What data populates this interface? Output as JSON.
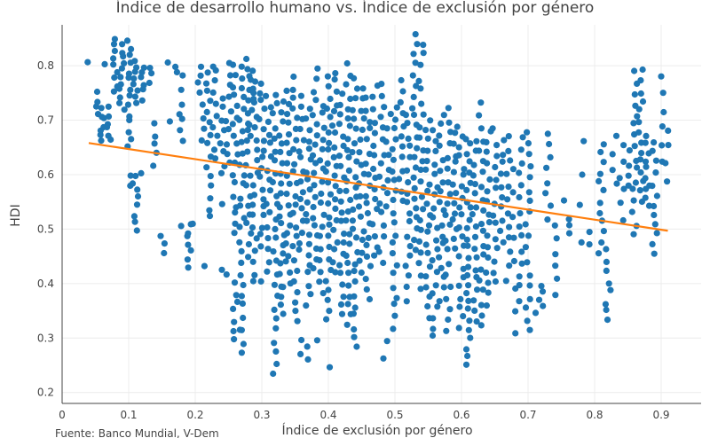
{
  "chart_data": {
    "type": "scatter",
    "title": "Índice de desarrollo humano vs. Índice de exclusión por género",
    "xlabel": "Índice de exclusión por género",
    "ylabel": "HDI",
    "source": "Fuente: Banco Mundial, V-Dem",
    "xlim": [
      0,
      0.96
    ],
    "ylim": [
      0.18,
      0.875
    ],
    "x_ticks": [
      0,
      0.1,
      0.2,
      0.3,
      0.4,
      0.5,
      0.6,
      0.7,
      0.8,
      0.9
    ],
    "y_ticks": [
      0.2,
      0.3,
      0.4,
      0.5,
      0.6,
      0.7,
      0.8
    ],
    "grid": true,
    "colors": {
      "points": "#1f77b4",
      "trend": "#ff7f0e"
    },
    "trendline": {
      "x": [
        0.04,
        0.91
      ],
      "y": [
        0.658,
        0.497
      ]
    },
    "clusters": [
      [
        0.04,
        0.8,
        0.81,
        1
      ],
      [
        0.05,
        0.71,
        0.75,
        4
      ],
      [
        0.06,
        0.66,
        0.72,
        7
      ],
      [
        0.065,
        0.8,
        0.81,
        1
      ],
      [
        0.07,
        0.66,
        0.72,
        6
      ],
      [
        0.08,
        0.75,
        0.85,
        9
      ],
      [
        0.09,
        0.72,
        0.84,
        11
      ],
      [
        0.1,
        0.65,
        0.85,
        14
      ],
      [
        0.1,
        0.58,
        0.6,
        2
      ],
      [
        0.11,
        0.5,
        0.6,
        8
      ],
      [
        0.11,
        0.73,
        0.81,
        8
      ],
      [
        0.12,
        0.6,
        0.61,
        1
      ],
      [
        0.12,
        0.74,
        0.8,
        6
      ],
      [
        0.135,
        0.77,
        0.8,
        3
      ],
      [
        0.14,
        0.62,
        0.69,
        5
      ],
      [
        0.15,
        0.46,
        0.49,
        3
      ],
      [
        0.155,
        0.8,
        0.81,
        1
      ],
      [
        0.16,
        0.7,
        0.7,
        1
      ],
      [
        0.17,
        0.79,
        0.8,
        2
      ],
      [
        0.18,
        0.7,
        0.7,
        1
      ],
      [
        0.18,
        0.66,
        0.78,
        6
      ],
      [
        0.18,
        0.5,
        0.51,
        1
      ],
      [
        0.19,
        0.43,
        0.51,
        7
      ],
      [
        0.2,
        0.5,
        0.51,
        1
      ],
      [
        0.205,
        0.77,
        0.8,
        3
      ],
      [
        0.21,
        0.43,
        0.43,
        1
      ],
      [
        0.21,
        0.66,
        0.75,
        5
      ],
      [
        0.22,
        0.52,
        0.79,
        15
      ],
      [
        0.23,
        0.63,
        0.79,
        9
      ],
      [
        0.23,
        0.8,
        0.8,
        1
      ],
      [
        0.24,
        0.54,
        0.55,
        1
      ],
      [
        0.24,
        0.6,
        0.74,
        8
      ],
      [
        0.24,
        0.42,
        0.43,
        1
      ],
      [
        0.25,
        0.62,
        0.8,
        10
      ],
      [
        0.25,
        0.41,
        0.42,
        1
      ],
      [
        0.26,
        0.49,
        0.8,
        18
      ],
      [
        0.26,
        0.3,
        0.4,
        7
      ],
      [
        0.27,
        0.32,
        0.8,
        25
      ],
      [
        0.27,
        0.27,
        0.31,
        3
      ],
      [
        0.28,
        0.45,
        0.81,
        20
      ],
      [
        0.285,
        0.67,
        0.78,
        6
      ],
      [
        0.29,
        0.4,
        0.79,
        20
      ],
      [
        0.3,
        0.47,
        0.77,
        18
      ],
      [
        0.3,
        0.39,
        0.41,
        1
      ],
      [
        0.31,
        0.42,
        0.74,
        16
      ],
      [
        0.32,
        0.23,
        0.75,
        26
      ],
      [
        0.33,
        0.34,
        0.73,
        22
      ],
      [
        0.33,
        0.38,
        0.4,
        1
      ],
      [
        0.34,
        0.4,
        0.75,
        20
      ],
      [
        0.35,
        0.33,
        0.78,
        24
      ],
      [
        0.36,
        0.46,
        0.74,
        16
      ],
      [
        0.36,
        0.27,
        0.3,
        2
      ],
      [
        0.37,
        0.36,
        0.72,
        20
      ],
      [
        0.37,
        0.26,
        0.28,
        2
      ],
      [
        0.38,
        0.43,
        0.79,
        20
      ],
      [
        0.38,
        0.29,
        0.3,
        1
      ],
      [
        0.39,
        0.38,
        0.73,
        18
      ],
      [
        0.4,
        0.33,
        0.78,
        24
      ],
      [
        0.4,
        0.24,
        0.25,
        1
      ],
      [
        0.41,
        0.42,
        0.79,
        20
      ],
      [
        0.42,
        0.34,
        0.75,
        22
      ],
      [
        0.43,
        0.32,
        0.8,
        26
      ],
      [
        0.44,
        0.28,
        0.78,
        26
      ],
      [
        0.45,
        0.42,
        0.76,
        18
      ],
      [
        0.46,
        0.37,
        0.74,
        20
      ],
      [
        0.47,
        0.45,
        0.76,
        16
      ],
      [
        0.48,
        0.26,
        0.27,
        1
      ],
      [
        0.48,
        0.44,
        0.77,
        16
      ],
      [
        0.49,
        0.29,
        0.3,
        1
      ],
      [
        0.49,
        0.54,
        0.71,
        8
      ],
      [
        0.5,
        0.32,
        0.72,
        22
      ],
      [
        0.51,
        0.55,
        0.77,
        12
      ],
      [
        0.52,
        0.37,
        0.71,
        18
      ],
      [
        0.53,
        0.46,
        0.86,
        22
      ],
      [
        0.54,
        0.39,
        0.84,
        22
      ],
      [
        0.55,
        0.34,
        0.7,
        20
      ],
      [
        0.56,
        0.3,
        0.68,
        20
      ],
      [
        0.57,
        0.37,
        0.71,
        18
      ],
      [
        0.58,
        0.31,
        0.72,
        20
      ],
      [
        0.59,
        0.46,
        0.69,
        14
      ],
      [
        0.6,
        0.32,
        0.67,
        20
      ],
      [
        0.61,
        0.25,
        0.67,
        26
      ],
      [
        0.62,
        0.33,
        0.66,
        18
      ],
      [
        0.63,
        0.32,
        0.73,
        20
      ],
      [
        0.64,
        0.36,
        0.68,
        16
      ],
      [
        0.65,
        0.4,
        0.68,
        14
      ],
      [
        0.66,
        0.48,
        0.66,
        10
      ],
      [
        0.67,
        0.41,
        0.67,
        12
      ],
      [
        0.68,
        0.31,
        0.61,
        8
      ],
      [
        0.69,
        0.37,
        0.67,
        14
      ],
      [
        0.7,
        0.31,
        0.68,
        18
      ],
      [
        0.71,
        0.35,
        0.35,
        1
      ],
      [
        0.72,
        0.36,
        0.4,
        4
      ],
      [
        0.73,
        0.52,
        0.68,
        8
      ],
      [
        0.74,
        0.38,
        0.51,
        6
      ],
      [
        0.75,
        0.55,
        0.55,
        1
      ],
      [
        0.76,
        0.49,
        0.52,
        3
      ],
      [
        0.78,
        0.48,
        0.66,
        4
      ],
      [
        0.79,
        0.47,
        0.49,
        2
      ],
      [
        0.81,
        0.46,
        0.66,
        12
      ],
      [
        0.82,
        0.33,
        0.46,
        8
      ],
      [
        0.83,
        0.58,
        0.67,
        4
      ],
      [
        0.84,
        0.52,
        0.65,
        6
      ],
      [
        0.85,
        0.58,
        0.64,
        4
      ],
      [
        0.86,
        0.49,
        0.79,
        16
      ],
      [
        0.87,
        0.55,
        0.79,
        14
      ],
      [
        0.88,
        0.54,
        0.67,
        10
      ],
      [
        0.89,
        0.45,
        0.66,
        12
      ],
      [
        0.9,
        0.62,
        0.78,
        6
      ],
      [
        0.91,
        0.59,
        0.68,
        4
      ]
    ]
  }
}
